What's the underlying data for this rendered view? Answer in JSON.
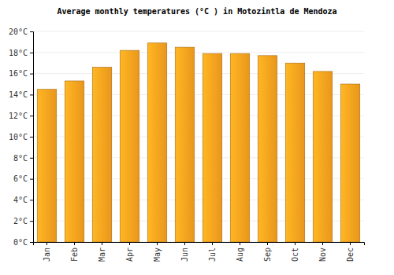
{
  "chart_data": {
    "type": "bar",
    "title": "Average monthly temperatures (°C ) in Motozintla de Mendoza",
    "categories": [
      "Jan",
      "Feb",
      "Mar",
      "Apr",
      "May",
      "Jun",
      "Jul",
      "Aug",
      "Sep",
      "Oct",
      "Nov",
      "Dec"
    ],
    "values": [
      14.5,
      15.3,
      16.6,
      18.2,
      18.9,
      18.5,
      17.9,
      17.9,
      17.7,
      17.0,
      16.2,
      15.0
    ],
    "color": "#ffa41f",
    "ylim": [
      0,
      20
    ],
    "yticks": [
      {
        "value": 0,
        "label": "0°C"
      },
      {
        "value": 2,
        "label": "2°C"
      },
      {
        "value": 4,
        "label": "4°C"
      },
      {
        "value": 6,
        "label": "6°C"
      },
      {
        "value": 8,
        "label": "8°C"
      },
      {
        "value": 10,
        "label": "10°C"
      },
      {
        "value": 12,
        "label": "12°C"
      },
      {
        "value": 14,
        "label": "14°C"
      },
      {
        "value": 16,
        "label": "16°C"
      },
      {
        "value": 18,
        "label": "18°C"
      },
      {
        "value": 20,
        "label": "20°C"
      }
    ],
    "grid": true
  }
}
